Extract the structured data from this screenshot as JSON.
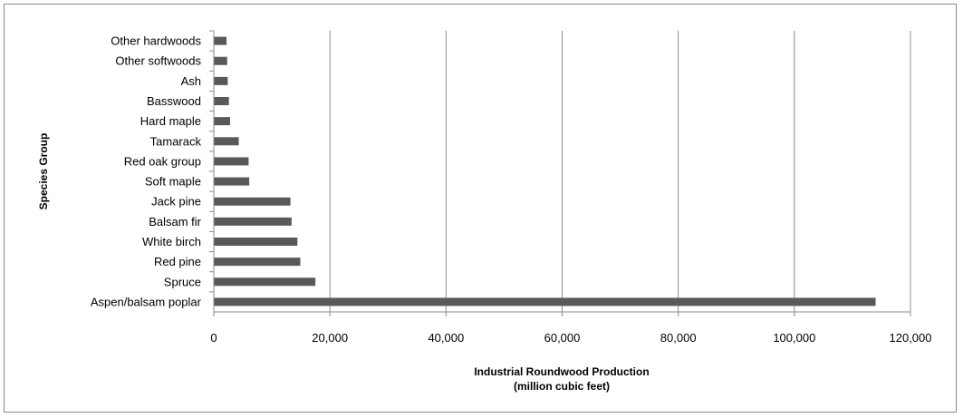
{
  "chart_data": {
    "type": "bar",
    "orientation": "horizontal",
    "categories": [
      "Other hardwoods",
      "Other softwoods",
      "Ash",
      "Basswood",
      "Hard maple",
      "Tamarack",
      "Red oak group",
      "Soft maple",
      "Jack pine",
      "Balsam fir",
      "White birch",
      "Red pine",
      "Spruce",
      "Aspen/balsam poplar"
    ],
    "values": [
      2200,
      2300,
      2400,
      2600,
      2800,
      4300,
      6000,
      6100,
      13200,
      13400,
      14400,
      14900,
      17500,
      114000
    ],
    "xlabel_line1": "Industrial Roundwood Production",
    "xlabel_line2": "(million cubic feet)",
    "ylabel": "Species Group",
    "xlim": [
      0,
      120000
    ],
    "xticks": [
      "0",
      "20,000",
      "40,000",
      "60,000",
      "80,000",
      "100,000",
      "120,000"
    ],
    "grid": "vertical major gridlines",
    "legend": "none",
    "colors": {
      "bar": "#595959",
      "grid": "#8c8c8c",
      "axis": "#8c8c8c"
    }
  }
}
